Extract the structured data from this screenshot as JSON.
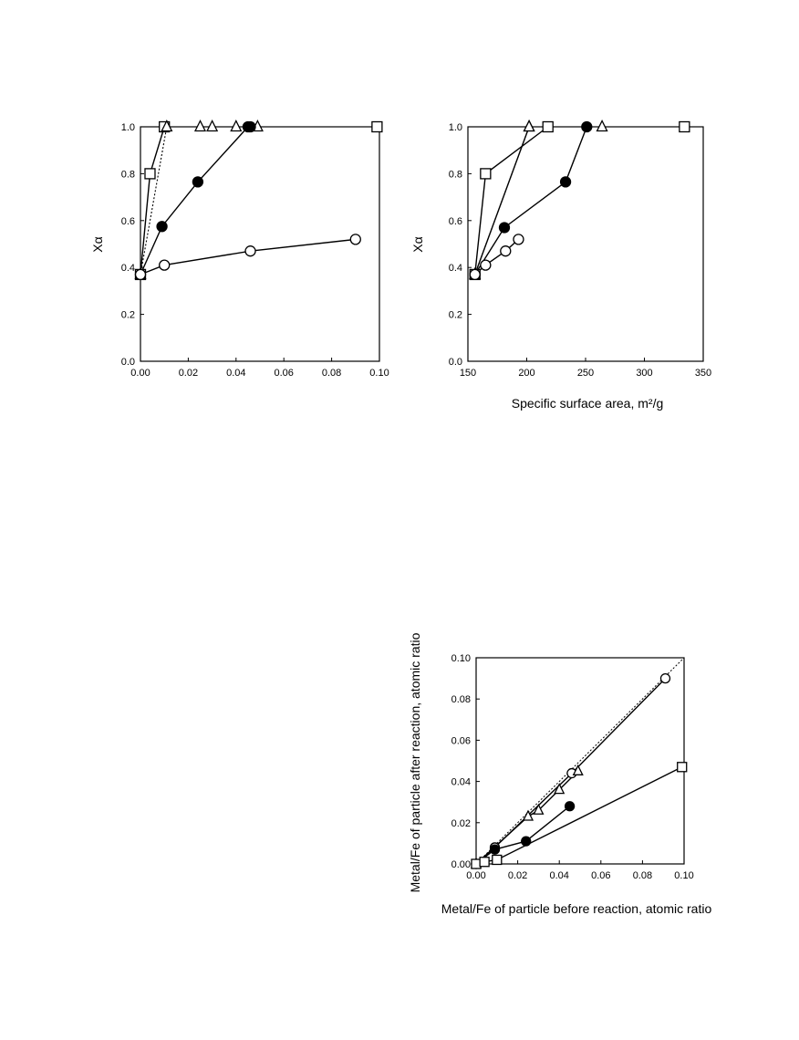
{
  "chart_data": [
    {
      "type": "scatter",
      "xlabel": "",
      "ylabel": "Xα",
      "xlim": [
        0,
        0.1
      ],
      "ylim": [
        0,
        1.0
      ],
      "xticks": [
        "0.00",
        "0.02",
        "0.04",
        "0.06",
        "0.08",
        "0.10"
      ],
      "yticks": [
        "0.0",
        "0.2",
        "0.4",
        "0.6",
        "0.8",
        "1.0"
      ],
      "series": [
        {
          "marker": "open-square",
          "line": "solid",
          "points": [
            [
              0.0,
              0.37
            ],
            [
              0.004,
              0.8
            ],
            [
              0.01,
              1.0
            ]
          ]
        },
        {
          "marker": "open-square",
          "line": "none",
          "points": [
            [
              0.099,
              1.0
            ]
          ]
        },
        {
          "marker": "open-triangle",
          "line": "dotted",
          "points": [
            [
              0.0,
              0.37
            ],
            [
              0.011,
              1.0
            ]
          ]
        },
        {
          "marker": "open-triangle",
          "line": "none",
          "points": [
            [
              0.025,
              1.0
            ],
            [
              0.03,
              1.0
            ],
            [
              0.04,
              1.0
            ],
            [
              0.049,
              1.0
            ]
          ]
        },
        {
          "marker": "filled-circle",
          "line": "solid",
          "points": [
            [
              0.0,
              0.37
            ],
            [
              0.009,
              0.575
            ],
            [
              0.024,
              0.765
            ],
            [
              0.045,
              1.0
            ],
            [
              0.046,
              1.0
            ]
          ]
        },
        {
          "marker": "open-circle",
          "line": "solid",
          "points": [
            [
              0.0,
              0.37
            ],
            [
              0.01,
              0.41
            ],
            [
              0.046,
              0.47
            ],
            [
              0.09,
              0.52
            ]
          ]
        }
      ]
    },
    {
      "type": "scatter",
      "xlabel": "Specific surface area, m²/g",
      "ylabel": "Xα",
      "xlim": [
        150,
        350
      ],
      "ylim": [
        0,
        1.0
      ],
      "xticks": [
        "150",
        "200",
        "250",
        "300",
        "350"
      ],
      "yticks": [
        "0.0",
        "0.2",
        "0.4",
        "0.6",
        "0.8",
        "1.0"
      ],
      "series": [
        {
          "marker": "open-square",
          "line": "solid",
          "points": [
            [
              156,
              0.37
            ],
            [
              165,
              0.8
            ],
            [
              218,
              1.0
            ]
          ]
        },
        {
          "marker": "open-square",
          "line": "none",
          "points": [
            [
              334,
              1.0
            ]
          ]
        },
        {
          "marker": "open-triangle",
          "line": "dotted",
          "points": [
            [
              156,
              0.37
            ],
            [
              202,
              1.0
            ]
          ]
        },
        {
          "marker": "open-triangle",
          "line": "solid",
          "points": [
            [
              156,
              0.37
            ],
            [
              202,
              1.0
            ]
          ]
        },
        {
          "marker": "open-triangle",
          "line": "none",
          "points": [
            [
              264,
              1.0
            ]
          ]
        },
        {
          "marker": "filled-circle",
          "line": "solid",
          "points": [
            [
              156,
              0.37
            ],
            [
              181,
              0.57
            ],
            [
              233,
              0.765
            ],
            [
              251,
              1.0
            ]
          ]
        },
        {
          "marker": "open-circle",
          "line": "solid",
          "points": [
            [
              156,
              0.37
            ],
            [
              165,
              0.41
            ],
            [
              182,
              0.47
            ],
            [
              193,
              0.52
            ]
          ]
        }
      ]
    },
    {
      "type": "scatter",
      "xlabel": "Metal/Fe of  particle before reaction, atomic ratio",
      "ylabel": "Metal/Fe of  particle after reaction, atomic ratio",
      "xlim": [
        0,
        0.1
      ],
      "ylim": [
        0,
        0.1
      ],
      "xticks": [
        "0.00",
        "0.02",
        "0.04",
        "0.06",
        "0.08",
        "0.10"
      ],
      "yticks": [
        "0.00",
        "0.02",
        "0.04",
        "0.06",
        "0.08",
        "0.10"
      ],
      "diagonal": true,
      "series": [
        {
          "marker": "open-circle",
          "line": "solid",
          "points": [
            [
              0.0,
              0.0
            ],
            [
              0.009,
              0.008
            ],
            [
              0.046,
              0.044
            ],
            [
              0.091,
              0.09
            ]
          ]
        },
        {
          "marker": "open-triangle",
          "line": "solid",
          "points": [
            [
              0.0,
              0.0
            ],
            [
              0.025,
              0.023
            ],
            [
              0.03,
              0.026
            ],
            [
              0.04,
              0.036
            ],
            [
              0.049,
              0.045
            ]
          ]
        },
        {
          "marker": "filled-circle",
          "line": "solid",
          "points": [
            [
              0.0,
              0.0
            ],
            [
              0.009,
              0.007
            ],
            [
              0.024,
              0.011
            ],
            [
              0.045,
              0.028
            ]
          ]
        },
        {
          "marker": "open-square",
          "line": "solid",
          "points": [
            [
              0.0,
              0.0
            ],
            [
              0.004,
              0.001
            ],
            [
              0.01,
              0.002
            ],
            [
              0.099,
              0.047
            ]
          ]
        }
      ]
    }
  ]
}
